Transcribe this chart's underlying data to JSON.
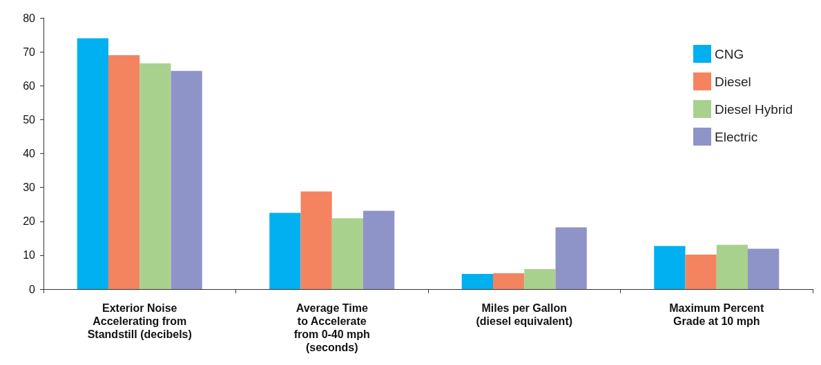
{
  "chart_data": {
    "type": "bar",
    "categories": [
      "Exterior Noise\nAccelerating from\nStandstill (decibels)",
      "Average Time\nto Accelerate\nfrom 0-40 mph\n(seconds)",
      "Miles per Gallon\n(diesel equivalent)",
      "Maximum Percent\nGrade at 10 mph"
    ],
    "series": [
      {
        "name": "CNG",
        "color": "#00b0f0",
        "values": [
          74,
          22.5,
          4.5,
          12.7
        ]
      },
      {
        "name": "Diesel",
        "color": "#f4845f",
        "values": [
          69,
          28.8,
          4.7,
          10.2
        ]
      },
      {
        "name": "Diesel Hybrid",
        "color": "#a9d18e",
        "values": [
          66.6,
          20.9,
          5.9,
          13.1
        ]
      },
      {
        "name": "Electric",
        "color": "#8e94c8",
        "values": [
          64.4,
          23.1,
          18.2,
          11.9
        ]
      }
    ],
    "ylim": [
      0,
      80
    ],
    "yticks": [
      0,
      10,
      20,
      30,
      40,
      50,
      60,
      70,
      80
    ],
    "grid": false,
    "legend": "top right"
  }
}
